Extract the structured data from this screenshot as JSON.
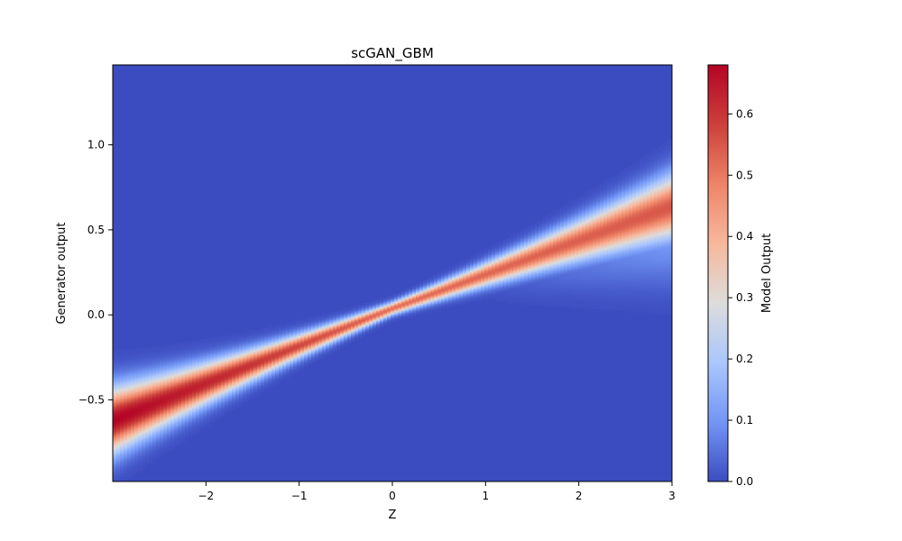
{
  "chart_data": {
    "type": "heatmap",
    "title": "scGAN_GBM",
    "xlabel": "Z",
    "ylabel": "Generator output",
    "xlim": [
      -3.0,
      3.0
    ],
    "ylim": [
      -0.98,
      1.47
    ],
    "x_ticks": [
      -2,
      -1,
      0,
      1,
      2,
      3
    ],
    "x_tick_labels": [
      "−2",
      "−1",
      "0",
      "1",
      "2",
      "3"
    ],
    "y_ticks": [
      -0.5,
      0.0,
      0.5,
      1.0
    ],
    "y_tick_labels": [
      "−0.5",
      "0.0",
      "0.5",
      "1.0"
    ],
    "colormap": "coolwarm",
    "colorbar": {
      "label": "Model Output",
      "range": [
        0.0,
        0.68
      ],
      "ticks": [
        0.0,
        0.1,
        0.2,
        0.3,
        0.4,
        0.5,
        0.6
      ],
      "tick_labels": [
        "0.0",
        "0.1",
        "0.2",
        "0.3",
        "0.4",
        "0.5",
        "0.6"
      ],
      "colors": [
        "#3b4cc0",
        "#7396f5",
        "#aac7fd",
        "#dddcdc",
        "#f7b89c",
        "#ee8468",
        "#cc403a",
        "#b40426"
      ]
    },
    "ridge": {
      "center_line": [
        [
          -3.0,
          -0.62
        ],
        [
          0.0,
          0.04
        ],
        [
          3.0,
          0.64
        ]
      ],
      "description_peak_value_left_edge": 0.68,
      "peak_value_center": 0.52,
      "lower_tail_right_edge_value": 0.1
    },
    "grid": false
  }
}
